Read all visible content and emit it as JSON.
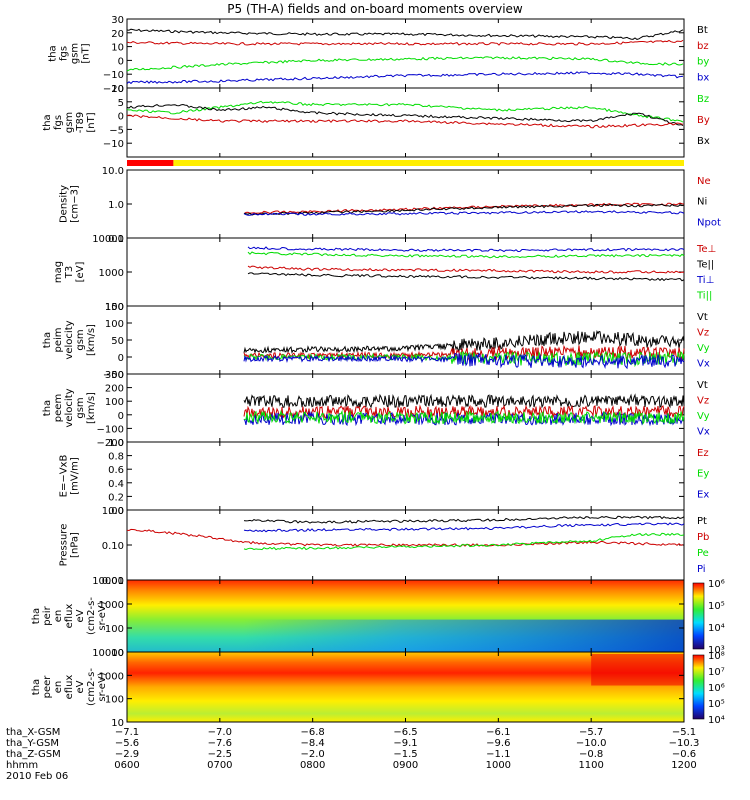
{
  "title": "P5 (TH-A) fields and on-board moments overview",
  "colors": {
    "black": "#000000",
    "red": "#cc0000",
    "green": "#00dd00",
    "blue": "#0000cc",
    "yellow": "#ffee00",
    "mode_red": "#ff0000"
  },
  "chart_data": {
    "type": "line",
    "x_range": [
      "0600",
      "1200"
    ],
    "mode_bar": {
      "red_until": "0630",
      "rest": "yellow"
    },
    "panels": [
      {
        "id": "fgs",
        "ylabel": [
          "tha",
          "fgs",
          "gsm",
          "[nT]"
        ],
        "ylim": [
          -20,
          30
        ],
        "log": false,
        "ticks": [
          30,
          20,
          10,
          0,
          -10,
          -20
        ],
        "tick_labels": [
          "30",
          "20",
          "10",
          "0",
          "−10",
          "−20"
        ],
        "legend": [
          {
            "name": "Bt",
            "color": "black"
          },
          {
            "name": "bz",
            "color": "red"
          },
          {
            "name": "by",
            "color": "green"
          },
          {
            "name": "bx",
            "color": "blue"
          }
        ],
        "series": [
          {
            "color": "black",
            "start": "0600",
            "x": [
              "0600",
              "0630",
              "0700",
              "0800",
              "0900",
              "1000",
              "1100",
              "1130",
              "1200"
            ],
            "y": [
              22,
              21,
              20,
              19,
              19,
              18,
              17,
              16,
              22
            ]
          },
          {
            "color": "red",
            "start": "0600",
            "x": [
              "0600",
              "0700",
              "0800",
              "0900",
              "1000",
              "1100",
              "1200"
            ],
            "y": [
              13,
              12,
              12,
              12,
              12,
              12,
              14
            ]
          },
          {
            "color": "green",
            "start": "0600",
            "x": [
              "0600",
              "0700",
              "0800",
              "0900",
              "1000",
              "1100",
              "1130",
              "1200"
            ],
            "y": [
              -7,
              -3,
              0,
              1,
              2,
              1,
              -2,
              -3
            ]
          },
          {
            "color": "blue",
            "start": "0600",
            "x": [
              "0600",
              "0700",
              "0800",
              "0900",
              "1000",
              "1100",
              "1130",
              "1200"
            ],
            "y": [
              -16,
              -15,
              -13,
              -11,
              -10,
              -9,
              -10,
              -12
            ]
          }
        ]
      },
      {
        "id": "fgs_dev",
        "ylabel": [
          "tha",
          "fgs",
          "gsm",
          "-T89",
          "[nT]"
        ],
        "ylim": [
          -15,
          10
        ],
        "log": false,
        "ticks": [
          10,
          5,
          0,
          -5,
          -10
        ],
        "tick_labels": [
          "10",
          "5",
          "0",
          "−5",
          "−10"
        ],
        "legend": [
          {
            "name": "Bz",
            "color": "green"
          },
          {
            "name": "By",
            "color": "red"
          },
          {
            "name": "Bx",
            "color": "black"
          }
        ],
        "series": [
          {
            "color": "green",
            "start": "0600",
            "x": [
              "0600",
              "0630",
              "0700",
              "0730",
              "0800",
              "0900",
              "1000",
              "1100",
              "1130",
              "1200"
            ],
            "y": [
              2,
              1,
              3,
              5,
              4,
              4,
              2,
              3,
              0,
              -2
            ]
          },
          {
            "color": "black",
            "start": "0600",
            "x": [
              "0600",
              "0630",
              "0700",
              "0730",
              "0800",
              "0900",
              "1000",
              "1100",
              "1130",
              "1200"
            ],
            "y": [
              3,
              4,
              2,
              3,
              1,
              0,
              -1,
              -2,
              1,
              -4
            ]
          },
          {
            "color": "red",
            "start": "0600",
            "x": [
              "0600",
              "0630",
              "0700",
              "0800",
              "0900",
              "1000",
              "1100",
              "1200"
            ],
            "y": [
              0,
              -1,
              -2,
              -2,
              -2,
              -3,
              -4,
              -3
            ]
          }
        ]
      },
      {
        "id": "density",
        "ylabel": [
          "Density",
          "[cm−3]"
        ],
        "ylim": [
          0.1,
          10
        ],
        "log": true,
        "ticks": [
          10,
          1,
          0.1
        ],
        "tick_labels": [
          "10.0",
          "1.0",
          "0.1"
        ],
        "legend": [
          {
            "name": "Ne",
            "color": "red"
          },
          {
            "name": "Ni",
            "color": "black"
          },
          {
            "name": "Npot",
            "color": "blue"
          }
        ],
        "series": [
          {
            "color": "red",
            "start": "0715",
            "x": [
              "0715",
              "0800",
              "0900",
              "1000",
              "1100",
              "1200"
            ],
            "y": [
              0.55,
              0.6,
              0.7,
              0.85,
              0.95,
              1.0
            ]
          },
          {
            "color": "black",
            "start": "0715",
            "x": [
              "0715",
              "0800",
              "0900",
              "1000",
              "1100",
              "1200"
            ],
            "y": [
              0.5,
              0.55,
              0.65,
              0.8,
              0.9,
              0.9
            ]
          },
          {
            "color": "blue",
            "start": "0715",
            "x": [
              "0715",
              "0800",
              "0900",
              "1000",
              "1100",
              "1200"
            ],
            "y": [
              0.5,
              0.5,
              0.52,
              0.55,
              0.6,
              0.55
            ]
          }
        ]
      },
      {
        "id": "temp",
        "ylabel": [
          "mag",
          "T3",
          "[eV]"
        ],
        "ylim": [
          100,
          10000
        ],
        "log": true,
        "ticks": [
          10000,
          1000,
          100
        ],
        "tick_labels": [
          "10000",
          "1000",
          "100"
        ],
        "legend": [
          {
            "name": "Te⊥",
            "color": "red"
          },
          {
            "name": "Te||",
            "color": "black"
          },
          {
            "name": "Ti⊥",
            "color": "blue"
          },
          {
            "name": "Ti||",
            "color": "green"
          }
        ],
        "series": [
          {
            "color": "blue",
            "start": "0718",
            "x": [
              "0718",
              "0800",
              "0900",
              "1000",
              "1100",
              "1200"
            ],
            "y": [
              5200,
              4700,
              4400,
              4300,
              4500,
              4600
            ]
          },
          {
            "color": "green",
            "start": "0718",
            "x": [
              "0718",
              "0800",
              "0900",
              "1000",
              "1100",
              "1200"
            ],
            "y": [
              3600,
              3300,
              3000,
              2800,
              3000,
              3100
            ]
          },
          {
            "color": "red",
            "start": "0718",
            "x": [
              "0718",
              "0800",
              "0900",
              "1000",
              "1100",
              "1200"
            ],
            "y": [
              1400,
              1200,
              1150,
              1100,
              1000,
              1000
            ]
          },
          {
            "color": "black",
            "start": "0718",
            "x": [
              "0718",
              "0800",
              "0900",
              "1000",
              "1100",
              "1200"
            ],
            "y": [
              900,
              800,
              750,
              700,
              650,
              600
            ]
          }
        ]
      },
      {
        "id": "vel_full",
        "ylabel": [
          "tha",
          "peim",
          "velocity",
          "gsm",
          "[km/s]"
        ],
        "ylim": [
          -50,
          150
        ],
        "log": false,
        "ticks": [
          150,
          100,
          50,
          0,
          -50
        ],
        "tick_labels": [
          "150",
          "100",
          "50",
          "0",
          "−50"
        ],
        "legend": [
          {
            "name": "Vt",
            "color": "black"
          },
          {
            "name": "Vz",
            "color": "red"
          },
          {
            "name": "Vy",
            "color": "green"
          },
          {
            "name": "Vx",
            "color": "blue"
          }
        ],
        "series": [
          {
            "color": "black",
            "start": "0715",
            "x": [
              "0715",
              "0900",
              "1000",
              "1100",
              "1200"
            ],
            "y": [
              20,
              25,
              40,
              60,
              40
            ]
          },
          {
            "color": "red",
            "start": "0715",
            "x": [
              "0715",
              "0900",
              "1000",
              "1100",
              "1200"
            ],
            "y": [
              5,
              5,
              10,
              15,
              10
            ]
          },
          {
            "color": "green",
            "start": "0715",
            "x": [
              "0715",
              "0900",
              "1000",
              "1100",
              "1200"
            ],
            "y": [
              0,
              0,
              -5,
              -5,
              -5
            ]
          },
          {
            "color": "blue",
            "start": "0715",
            "x": [
              "0715",
              "0900",
              "1000",
              "1100",
              "1200"
            ],
            "y": [
              -5,
              -5,
              -10,
              -15,
              -10
            ]
          }
        ]
      },
      {
        "id": "vel_burst",
        "ylabel": [
          "tha",
          "peem",
          "velocity",
          "gsm",
          "[km/s]"
        ],
        "ylim": [
          -200,
          300
        ],
        "log": false,
        "ticks": [
          300,
          200,
          100,
          0,
          -100,
          -200
        ],
        "tick_labels": [
          "300",
          "200",
          "100",
          "0",
          "−100",
          "−200"
        ],
        "legend": [
          {
            "name": "Vt",
            "color": "black"
          },
          {
            "name": "Vz",
            "color": "red"
          },
          {
            "name": "Vy",
            "color": "green"
          },
          {
            "name": "Vx",
            "color": "blue"
          }
        ],
        "series": [
          {
            "color": "black",
            "start": "0715",
            "x": [
              "0715",
              "1200"
            ],
            "y": [
              100,
              100
            ]
          },
          {
            "color": "red",
            "start": "0715",
            "x": [
              "0715",
              "1200"
            ],
            "y": [
              20,
              20
            ]
          },
          {
            "color": "blue",
            "start": "0715",
            "x": [
              "0715",
              "1200"
            ],
            "y": [
              -30,
              -30
            ]
          },
          {
            "color": "green",
            "start": "0715",
            "x": [
              "0715",
              "1200"
            ],
            "y": [
              -20,
              -20
            ]
          }
        ]
      },
      {
        "id": "efield",
        "ylabel": [
          "E=−VxB",
          "[mV/m]"
        ],
        "ylim": [
          0,
          1
        ],
        "log": false,
        "ticks": [
          1.0,
          0.8,
          0.6,
          0.4,
          0.2,
          0.0
        ],
        "tick_labels": [
          "1.0",
          "0.8",
          "0.6",
          "0.4",
          "0.2",
          "0.0"
        ],
        "legend": [
          {
            "name": "Ez",
            "color": "red"
          },
          {
            "name": "Ey",
            "color": "green"
          },
          {
            "name": "Ex",
            "color": "blue"
          }
        ],
        "series": []
      },
      {
        "id": "pressure",
        "ylabel": [
          "Pressure",
          "[nPa]"
        ],
        "ylim": [
          0.01,
          1
        ],
        "log": true,
        "ticks": [
          1,
          0.1,
          0.01
        ],
        "tick_labels": [
          "1.00",
          "0.10",
          "0.01"
        ],
        "legend": [
          {
            "name": "Pt",
            "color": "black"
          },
          {
            "name": "Pb",
            "color": "red"
          },
          {
            "name": "Pe",
            "color": "green"
          },
          {
            "name": "Pi",
            "color": "blue"
          }
        ],
        "series": [
          {
            "color": "black",
            "start": "0715",
            "x": [
              "0715",
              "0800",
              "0900",
              "1000",
              "1100",
              "1200"
            ],
            "y": [
              0.5,
              0.45,
              0.48,
              0.52,
              0.62,
              0.6
            ]
          },
          {
            "color": "blue",
            "start": "0715",
            "x": [
              "0715",
              "0800",
              "0900",
              "1000",
              "1100",
              "1200"
            ],
            "y": [
              0.25,
              0.27,
              0.28,
              0.3,
              0.38,
              0.4
            ]
          },
          {
            "color": "red",
            "start": "0600",
            "x": [
              "0600",
              "0715",
              "0800",
              "0900",
              "1000",
              "1100",
              "1200"
            ],
            "y": [
              0.28,
              0.12,
              0.1,
              0.1,
              0.1,
              0.12,
              0.1
            ]
          },
          {
            "color": "green",
            "start": "0715",
            "x": [
              "0715",
              "0800",
              "0900",
              "1000",
              "1100",
              "1130",
              "1200"
            ],
            "y": [
              0.08,
              0.08,
              0.09,
              0.1,
              0.13,
              0.2,
              0.2
            ]
          }
        ]
      },
      {
        "id": "ion_spec",
        "type": "heatmap",
        "ylabel": [
          "tha",
          "peir",
          "en",
          "eflux",
          "eV",
          "(cm2-s-",
          "sr-eV)"
        ],
        "ylim": [
          10,
          10000
        ],
        "log": true,
        "ticks": [
          10000,
          1000,
          100,
          10
        ],
        "tick_labels": [
          "10000",
          "1000",
          "100",
          "10"
        ],
        "colorbar": {
          "range": [
            "10³",
            "10⁶"
          ],
          "labels": [
            "10⁶",
            "10⁵",
            "10⁴",
            "10³"
          ]
        }
      },
      {
        "id": "elec_spec",
        "type": "heatmap",
        "ylabel": [
          "tha",
          "peer",
          "en",
          "eflux",
          "eV",
          "(cm2-s-",
          "sr-eV)"
        ],
        "ylim": [
          10,
          10000
        ],
        "log": true,
        "ticks": [
          10000,
          1000,
          100,
          10
        ],
        "tick_labels": [
          "10000",
          "1000",
          "100",
          "10"
        ],
        "colorbar": {
          "range": [
            "10⁴",
            "10⁸"
          ],
          "labels": [
            "10⁸",
            "10⁷",
            "10⁶",
            "10⁵",
            "10⁴"
          ]
        }
      }
    ],
    "ephemeris": {
      "row_labels": [
        "tha_X-GSM",
        "tha_Y-GSM",
        "tha_Z-GSM",
        "hhmm"
      ],
      "date": "2010 Feb 06",
      "columns": [
        {
          "X": "−7.1",
          "Y": "−5.6",
          "Z": "−2.9",
          "hhmm": "0600"
        },
        {
          "X": "−7.0",
          "Y": "−7.6",
          "Z": "−2.5",
          "hhmm": "0700"
        },
        {
          "X": "−6.8",
          "Y": "−8.4",
          "Z": "−2.0",
          "hhmm": "0800"
        },
        {
          "X": "−6.5",
          "Y": "−9.1",
          "Z": "−1.5",
          "hhmm": "0900"
        },
        {
          "X": "−6.1",
          "Y": "−9.6",
          "Z": "−1.1",
          "hhmm": "1000"
        },
        {
          "X": "−5.7",
          "Y": "−10.0",
          "Z": "−0.8",
          "hhmm": "1100"
        },
        {
          "X": "−5.1",
          "Y": "−10.3",
          "Z": "−0.6",
          "hhmm": "1200"
        }
      ]
    }
  }
}
